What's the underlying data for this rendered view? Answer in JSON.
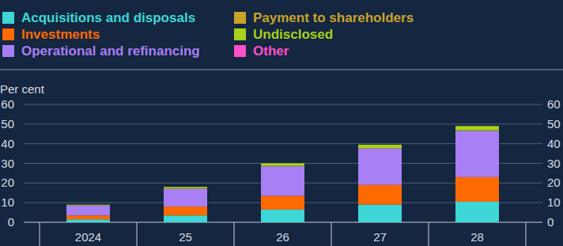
{
  "chart_data": {
    "type": "bar",
    "stacked": true,
    "grid": true,
    "legend": "top",
    "y_label": "Per cent",
    "categories": [
      "2024",
      "25",
      "26",
      "27",
      "28"
    ],
    "series": [
      {
        "name": "Acquisitions and disposals",
        "color": "#3ed6d6",
        "values": [
          1.5,
          3.5,
          6.5,
          9,
          10.5
        ]
      },
      {
        "name": "Investments",
        "color": "#ff6a00",
        "values": [
          2,
          4.5,
          7,
          10,
          12.5
        ]
      },
      {
        "name": "Operational and refinancing",
        "color": "#a97ff5",
        "values": [
          5,
          9,
          15,
          18.5,
          23.5
        ]
      },
      {
        "name": "Payment to shareholders",
        "color": "#c9a32a",
        "values": [
          0.2,
          0.2,
          0.2,
          0.3,
          0.3
        ]
      },
      {
        "name": "Undisclosed",
        "color": "#a8d11a",
        "values": [
          0.3,
          0.8,
          1.3,
          1.7,
          2.2
        ]
      },
      {
        "name": "Other",
        "color": "#ff4fc8",
        "values": [
          0,
          0,
          0,
          0,
          0
        ]
      }
    ],
    "ylim": [
      0,
      60
    ],
    "yticks": [
      0,
      10,
      20,
      30,
      40,
      50,
      60
    ]
  }
}
